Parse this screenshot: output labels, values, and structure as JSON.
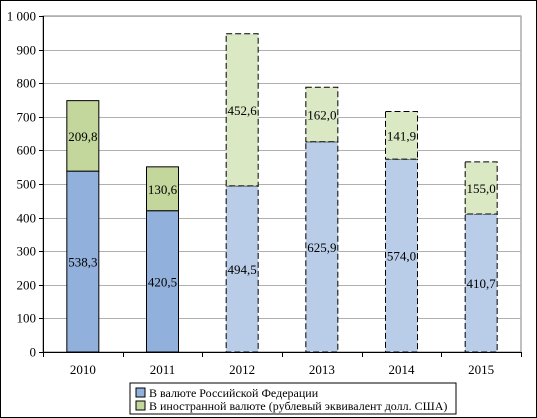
{
  "chart_data": {
    "type": "bar",
    "stacked": true,
    "categories": [
      "2010",
      "2011",
      "2012",
      "2013",
      "2014",
      "2015"
    ],
    "series": [
      {
        "name": "В валюте Российской Федерации",
        "values": [
          538.3,
          420.5,
          494.5,
          625.9,
          574.0,
          410.7
        ],
        "labels": [
          "538,3",
          "420,5",
          "494,5",
          "625,9",
          "574,0",
          "410,7"
        ],
        "color_solid": "#92b0dc",
        "color_dashed": "#b9cde8"
      },
      {
        "name": "В иностранной валюте (рублевый эквивалент долл. США)",
        "values": [
          209.8,
          130.6,
          452.6,
          162.0,
          141.9,
          155.0
        ],
        "labels": [
          "209,8",
          "130,6",
          "452,6",
          "162,0",
          "141,9",
          "155,0"
        ],
        "color_solid": "#c3d69b",
        "color_dashed": "#dbe8c4"
      }
    ],
    "dashed_from_category_index": 2,
    "ylim": [
      0,
      1000
    ],
    "yticks": [
      0,
      100,
      200,
      300,
      400,
      500,
      600,
      700,
      800,
      900,
      1000
    ],
    "ytick_labels": [
      "0",
      "100",
      "200",
      "300",
      "400",
      "500",
      "600",
      "700",
      "800",
      "900",
      "1 000"
    ],
    "grid": true,
    "legend_position": "bottom",
    "title": "",
    "xlabel": "",
    "ylabel": ""
  }
}
